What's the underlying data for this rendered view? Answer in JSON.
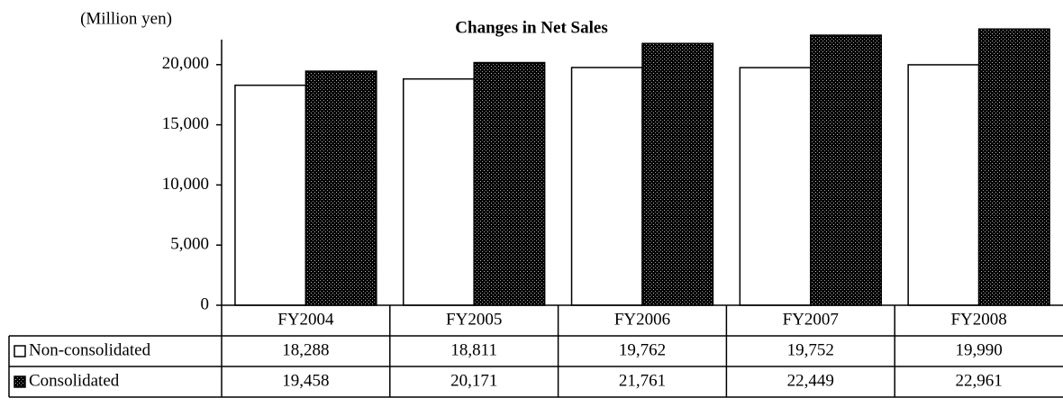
{
  "chart_data": {
    "type": "bar",
    "title": "Changes in Net Sales",
    "y_label": "(Million yen)",
    "categories": [
      "FY2004",
      "FY2005",
      "FY2006",
      "FY2007",
      "FY2008"
    ],
    "series": [
      {
        "name": "Non-consolidated",
        "color": "#ffffff",
        "values": [
          18288,
          18811,
          19762,
          19752,
          19990
        ],
        "value_labels": [
          "18,288",
          "18,811",
          "19,762",
          "19,752",
          "19,990"
        ]
      },
      {
        "name": "Consolidated",
        "color": "#4a4a4a",
        "values": [
          19458,
          20171,
          21761,
          22449,
          22961
        ],
        "value_labels": [
          "19,458",
          "20,171",
          "21,761",
          "22,449",
          "22,961"
        ]
      }
    ],
    "ylim": [
      0,
      25000
    ],
    "yticks": [
      0,
      {
        "value": 5000,
        "label": "5,000"
      },
      {
        "value": 10000,
        "label": "10,000"
      },
      {
        "value": 15000,
        "label": "15,000"
      },
      {
        "value": 20000,
        "label": "20,000"
      }
    ]
  }
}
